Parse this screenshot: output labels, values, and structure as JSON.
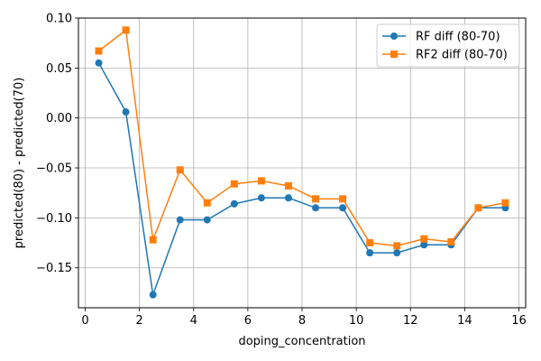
{
  "chart_data": {
    "type": "line",
    "xlabel": "doping_concentration",
    "ylabel": "predicted(80) - predicted(70)",
    "xlim": [
      -0.25,
      16.25
    ],
    "ylim": [
      -0.19,
      0.1
    ],
    "xticks": [
      0,
      2,
      4,
      6,
      8,
      10,
      12,
      14,
      16
    ],
    "yticks": [
      0.1,
      0.05,
      0.0,
      -0.05,
      -0.1,
      -0.15
    ],
    "ytick_labels": [
      "0.10",
      "0.05",
      "0.00",
      "−0.05",
      "−0.10",
      "−0.15"
    ],
    "grid": true,
    "legend_position": "top-right",
    "x": [
      0.5,
      1.5,
      2.5,
      3.5,
      4.5,
      5.5,
      6.5,
      7.5,
      8.5,
      9.5,
      10.5,
      11.5,
      12.5,
      13.5,
      14.5,
      15.5
    ],
    "series": [
      {
        "name": "RF diff (80-70)",
        "color": "#1f77b4",
        "marker": "circle",
        "values": [
          0.055,
          0.006,
          -0.177,
          -0.102,
          -0.102,
          -0.086,
          -0.08,
          -0.08,
          -0.09,
          -0.09,
          -0.135,
          -0.135,
          -0.127,
          -0.127,
          -0.09,
          -0.09
        ]
      },
      {
        "name": "RF2 diff (80-70)",
        "color": "#ff7f0e",
        "marker": "square",
        "values": [
          0.067,
          0.088,
          -0.122,
          -0.052,
          -0.085,
          -0.066,
          -0.063,
          -0.068,
          -0.081,
          -0.081,
          -0.125,
          -0.128,
          -0.121,
          -0.124,
          -0.09,
          -0.085
        ]
      }
    ]
  }
}
